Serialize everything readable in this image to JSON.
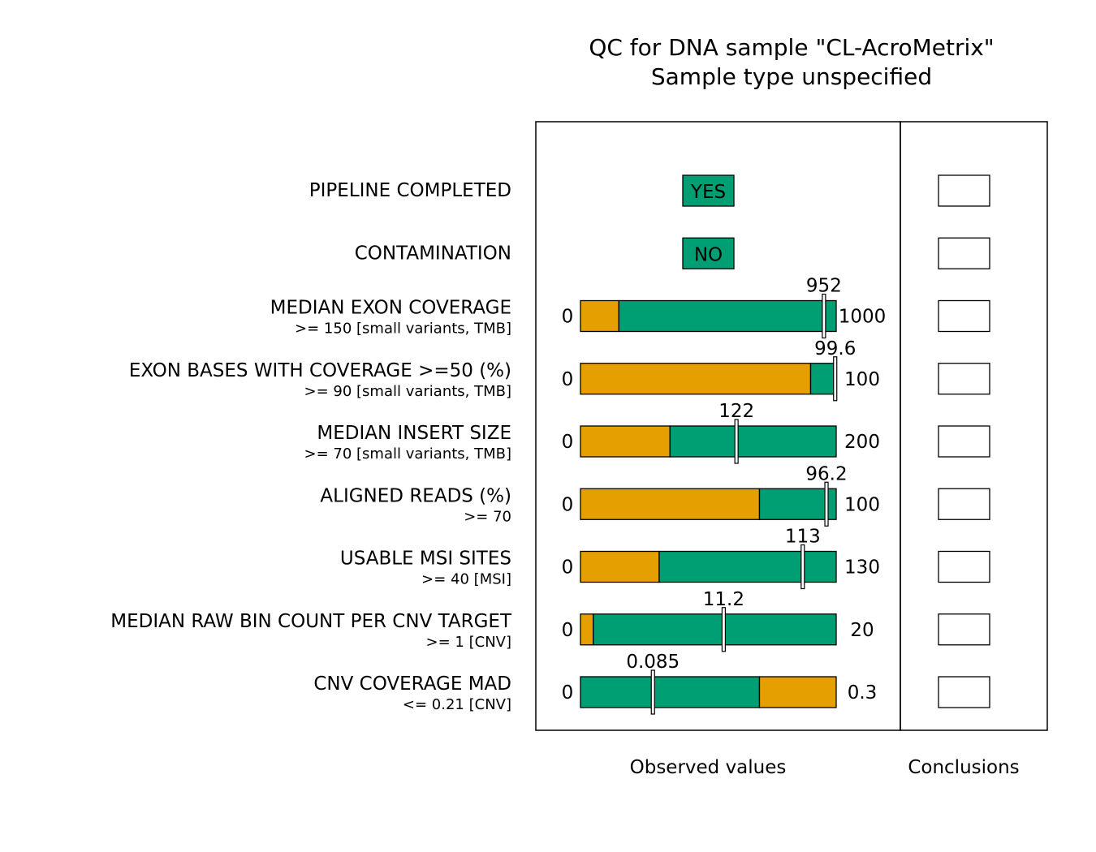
{
  "title_line1": "QC for DNA sample \"CL-AcroMetrix\"",
  "title_line2": "Sample type unspecified",
  "footer": {
    "observed": "Observed values",
    "conclusions": "Conclusions"
  },
  "colors": {
    "pass": "#009E73",
    "fail": "#E69F00",
    "border": "#000000"
  },
  "chart_data": {
    "type": "bar",
    "orientation": "horizontal",
    "metrics": [
      {
        "label": "PIPELINE COMPLETED",
        "sub": "",
        "kind": "flag",
        "flag": "YES",
        "status": "pass"
      },
      {
        "label": "CONTAMINATION",
        "sub": "",
        "kind": "flag",
        "flag": "NO",
        "status": "pass"
      },
      {
        "label": "MEDIAN EXON COVERAGE",
        "sub": ">= 150   [small variants, TMB]",
        "kind": "bar",
        "min": 0,
        "max": 1000,
        "min_label": "0",
        "max_label": "1000",
        "threshold": 150,
        "direction": "ge",
        "value": 952,
        "value_label": "952"
      },
      {
        "label": "EXON BASES WITH COVERAGE >=50 (%)",
        "sub": ">= 90   [small variants, TMB]",
        "kind": "bar",
        "min": 0,
        "max": 100,
        "min_label": "0",
        "max_label": "100",
        "threshold": 90,
        "direction": "ge",
        "value": 99.6,
        "value_label": "99.6"
      },
      {
        "label": "MEDIAN INSERT SIZE",
        "sub": ">= 70   [small variants, TMB]",
        "kind": "bar",
        "min": 0,
        "max": 200,
        "min_label": "0",
        "max_label": "200",
        "threshold": 70,
        "direction": "ge",
        "value": 122,
        "value_label": "122"
      },
      {
        "label": "ALIGNED READS (%)",
        "sub": ">= 70",
        "kind": "bar",
        "min": 0,
        "max": 100,
        "min_label": "0",
        "max_label": "100",
        "threshold": 70,
        "direction": "ge",
        "value": 96.2,
        "value_label": "96.2"
      },
      {
        "label": "USABLE MSI SITES",
        "sub": ">= 40   [MSI]",
        "kind": "bar",
        "min": 0,
        "max": 130,
        "min_label": "0",
        "max_label": "130",
        "threshold": 40,
        "direction": "ge",
        "value": 113,
        "value_label": "113"
      },
      {
        "label": "MEDIAN RAW BIN COUNT PER CNV TARGET",
        "sub": ">= 1   [CNV]",
        "kind": "bar",
        "min": 0,
        "max": 20,
        "min_label": "0",
        "max_label": "20",
        "threshold": 1,
        "direction": "ge",
        "value": 11.2,
        "value_label": "11.2"
      },
      {
        "label": "CNV COVERAGE MAD",
        "sub": "<= 0.21   [CNV]",
        "kind": "bar",
        "min": 0,
        "max": 0.3,
        "min_label": "0",
        "max_label": "0.3",
        "threshold": 0.21,
        "direction": "le",
        "value": 0.085,
        "value_label": "0.085"
      }
    ]
  }
}
